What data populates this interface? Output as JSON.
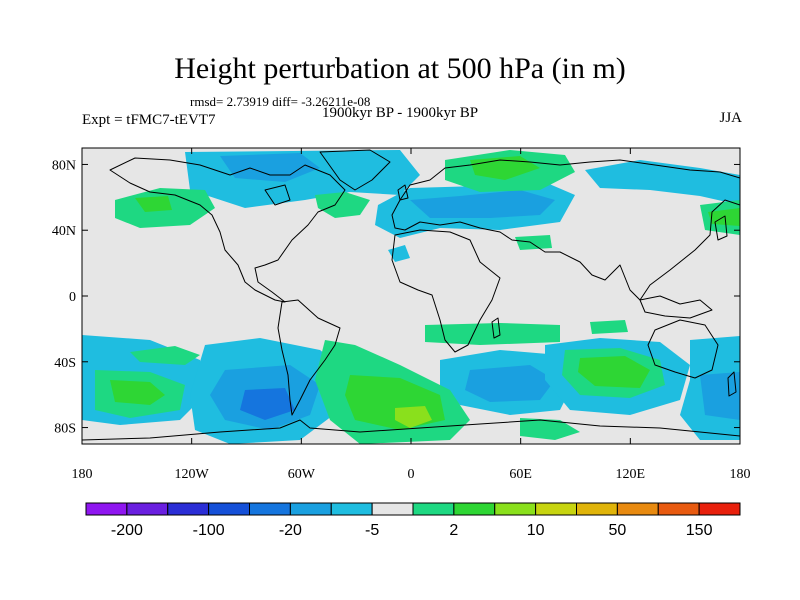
{
  "header": {
    "title": "Height perturbation at 500 hPa (in m)",
    "stats": "rmsd= 2.73919 diff= -3.26211e-08",
    "experiment": "Expt = tFMC7-tEVT7",
    "period": "1900kyr BP - 1900kyr BP",
    "season": "JJA"
  },
  "axes": {
    "lat_labels": [
      "80N",
      "40N",
      "0",
      "40S",
      "80S"
    ],
    "lat_values": [
      80,
      40,
      0,
      -40,
      -80
    ],
    "lon_labels": [
      "180",
      "120W",
      "60W",
      "0",
      "60E",
      "120E",
      "180"
    ],
    "lon_values": [
      -180,
      -120,
      -60,
      0,
      60,
      120,
      180
    ]
  },
  "colorbar": {
    "colors": [
      "#8f16f0",
      "#6a1fe0",
      "#2b2ed6",
      "#1550d8",
      "#1575de",
      "#1aa0e0",
      "#1fbde0",
      "#e6e6e6",
      "#1ed882",
      "#2ed634",
      "#8ae01c",
      "#c7d410",
      "#e0b40a",
      "#e88a10",
      "#e85a10",
      "#e8200c"
    ],
    "labels": [
      "-200",
      "-100",
      "-20",
      "-5",
      "2",
      "10",
      "50",
      "150"
    ]
  },
  "colors": {
    "background": "#e6e6e6",
    "coast": "#000000"
  }
}
